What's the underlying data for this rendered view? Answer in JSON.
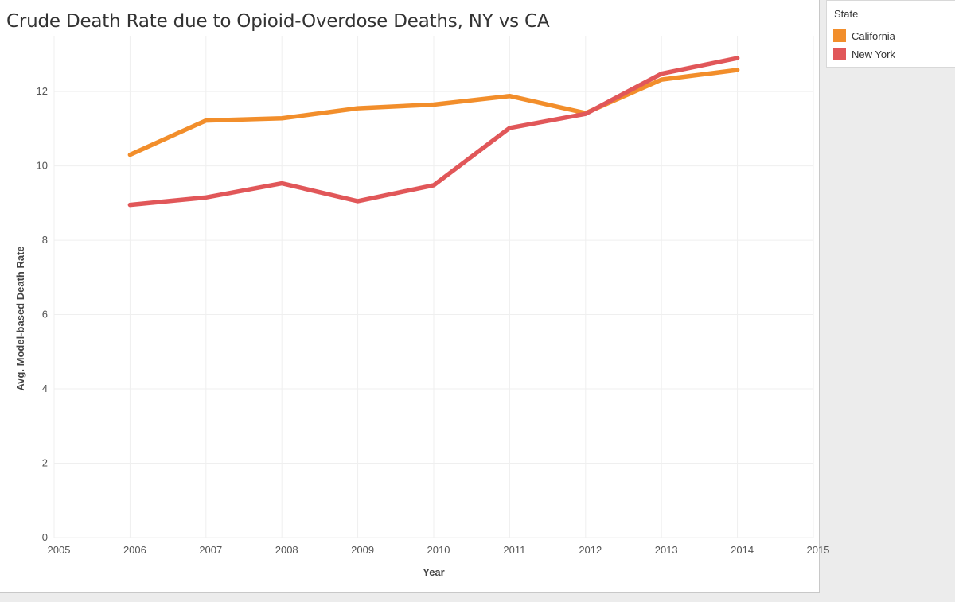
{
  "legend": {
    "title": "State"
  },
  "chart_data": {
    "type": "line",
    "title": "Crude Death Rate due to Opioid-Overdose Deaths, NY vs CA",
    "xlabel": "Year",
    "ylabel": "Avg. Model-based Death Rate",
    "xlim": [
      2005,
      2015
    ],
    "ylim": [
      0,
      13.5
    ],
    "x_ticks": [
      2005,
      2006,
      2007,
      2008,
      2009,
      2010,
      2011,
      2012,
      2013,
      2014,
      2015
    ],
    "y_ticks": [
      0,
      2,
      4,
      6,
      8,
      10,
      12
    ],
    "grid": true,
    "legend_position": "top-right",
    "x": [
      2006,
      2007,
      2008,
      2009,
      2010,
      2011,
      2012,
      2013,
      2014
    ],
    "series": [
      {
        "name": "California",
        "color": "#f28e2b",
        "values": [
          10.3,
          11.22,
          11.28,
          11.55,
          11.65,
          11.88,
          11.42,
          12.32,
          12.58
        ]
      },
      {
        "name": "New York",
        "color": "#e15759",
        "values": [
          8.95,
          9.15,
          9.53,
          9.05,
          9.48,
          11.02,
          11.4,
          12.48,
          12.9
        ]
      }
    ]
  }
}
